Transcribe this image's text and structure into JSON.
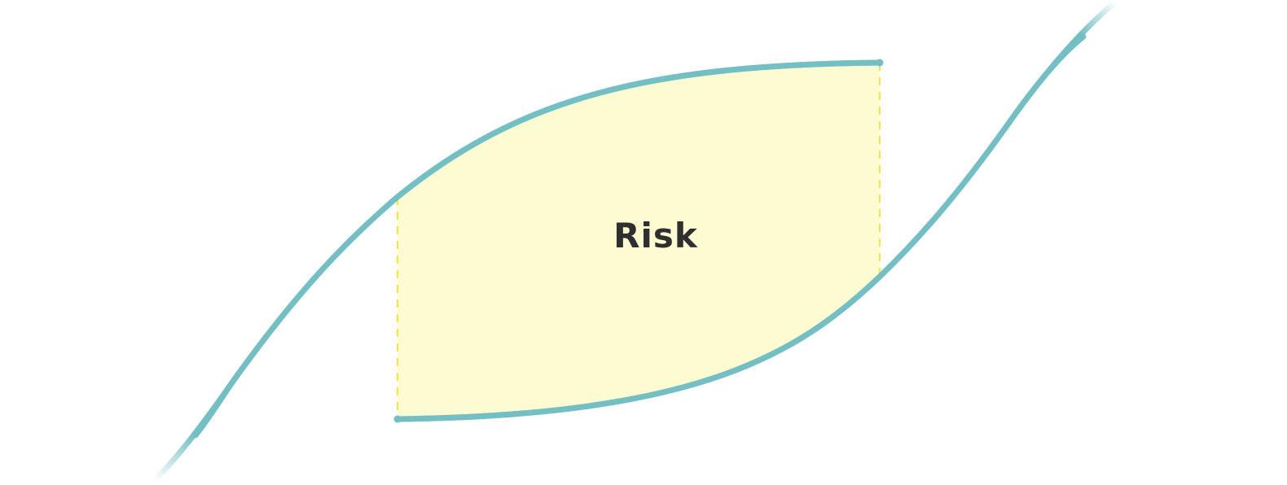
{
  "diagram": {
    "label": "Risk",
    "colors": {
      "curve": "#74bfc4",
      "fill": "#fdfbd2",
      "dashed_edge": "#f2e44a",
      "label_text": "#2f2f2f",
      "background": "#ffffff"
    }
  }
}
